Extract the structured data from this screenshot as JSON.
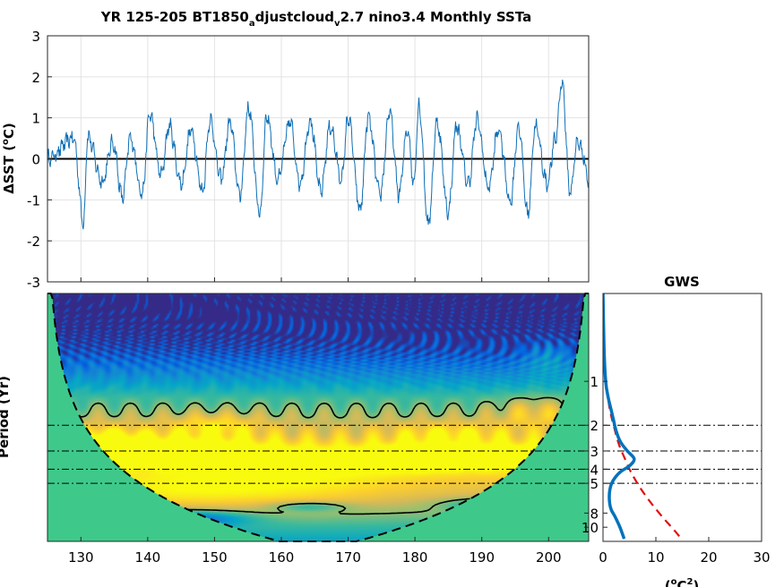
{
  "figure": {
    "title_parts": [
      "YR 125-205 BT1850",
      "a",
      "djustcloud",
      "v",
      "2.7 nino3.4 Monthly SSTa"
    ],
    "colors": {
      "series": "#0f6fb5",
      "zero_line": "#000000",
      "gws_global": "#0072bd",
      "gws_red": "#dd1111",
      "coi_fill": "#3ec98a",
      "grid": "#e3e3e3"
    }
  },
  "chart_data": [
    {
      "type": "line",
      "panel": "time-series",
      "ylabel_parts": [
        "ΔSST (",
        "o",
        "C)"
      ],
      "xlim": [
        125,
        206
      ],
      "ylim": [
        -3,
        3
      ],
      "yticks": [
        "3",
        "2",
        "1",
        "0",
        "-1",
        "-2",
        "-3"
      ],
      "ytick_values": [
        3,
        2,
        1,
        0,
        -1,
        -2,
        -3
      ],
      "grid": true,
      "zero_line": true,
      "x_start": 125.0,
      "x_step": 0.0833333,
      "peaks": [
        [
          128.9,
          0.5
        ],
        [
          130.4,
          -1.55
        ],
        [
          131.0,
          0.55
        ],
        [
          133.2,
          -0.55
        ],
        [
          134.8,
          0.4
        ],
        [
          136.2,
          -0.95
        ],
        [
          137.4,
          0.5
        ],
        [
          139.2,
          -0.85
        ],
        [
          140.3,
          1.1
        ],
        [
          142.0,
          -0.4
        ],
        [
          143.2,
          0.8
        ],
        [
          145.0,
          -0.6
        ],
        [
          146.5,
          0.7
        ],
        [
          148.2,
          -0.8
        ],
        [
          149.3,
          0.95
        ],
        [
          151.0,
          -0.5
        ],
        [
          152.3,
          0.9
        ],
        [
          153.8,
          -0.9
        ],
        [
          155.1,
          1.25
        ],
        [
          156.8,
          -1.35
        ],
        [
          157.8,
          1.05
        ],
        [
          159.5,
          -0.5
        ],
        [
          161.3,
          0.9
        ],
        [
          162.8,
          -0.6
        ],
        [
          164.3,
          0.95
        ],
        [
          165.9,
          -0.8
        ],
        [
          167.3,
          0.8
        ],
        [
          169.0,
          -0.5
        ],
        [
          170.0,
          1.0
        ],
        [
          171.8,
          -1.25
        ],
        [
          173.0,
          1.0
        ],
        [
          174.8,
          -0.9
        ],
        [
          176.2,
          1.15
        ],
        [
          177.6,
          -0.85
        ],
        [
          178.9,
          0.75
        ],
        [
          179.8,
          -0.6
        ],
        [
          180.6,
          1.3
        ],
        [
          182.0,
          -1.6
        ],
        [
          183.3,
          0.9
        ],
        [
          185.0,
          -1.3
        ],
        [
          186.2,
          0.8
        ],
        [
          188.0,
          -0.6
        ],
        [
          189.3,
          0.95
        ],
        [
          191.0,
          -0.7
        ],
        [
          192.5,
          0.7
        ],
        [
          194.3,
          -1.05
        ],
        [
          195.5,
          0.8
        ],
        [
          196.9,
          -1.35
        ],
        [
          198.0,
          0.8
        ],
        [
          199.8,
          -0.6
        ],
        [
          201.0,
          0.45
        ],
        [
          202.0,
          1.9
        ],
        [
          203.2,
          -0.8
        ],
        [
          204.4,
          0.45
        ],
        [
          205.0,
          0.2
        ],
        [
          206.0,
          -0.55
        ]
      ]
    },
    {
      "type": "heatmap",
      "panel": "wavelet-power",
      "ylabel": "Period (Yr)",
      "xlim": [
        125,
        206
      ],
      "xticks": [
        "130",
        "140",
        "150",
        "160",
        "170",
        "180",
        "190",
        "200"
      ],
      "xtick_values": [
        130,
        140,
        150,
        160,
        170,
        180,
        190,
        200
      ],
      "period_range": [
        0.25,
        12.5
      ],
      "yticks": [
        "1",
        "2",
        "3",
        "4",
        "5",
        "8",
        "10"
      ],
      "ytick_values": [
        1,
        2,
        3,
        4,
        5,
        8,
        10
      ],
      "reference_periods": [
        2,
        3,
        4,
        5
      ],
      "colormap": [
        "#352a87",
        "#0363e1",
        "#1485d4",
        "#06a7c6",
        "#38b99e",
        "#92bf73",
        "#d9ba56",
        "#fcce2e",
        "#f9fb0e"
      ],
      "blobs": [
        {
          "t": 158,
          "p": 5.5,
          "sx": 14,
          "sy": 0.35,
          "a": 0.18
        },
        {
          "t": 140,
          "p": 6.0,
          "sx": 11,
          "sy": 0.3,
          "a": 0.12
        },
        {
          "t": 182,
          "p": 3.3,
          "sx": 6,
          "sy": 0.18,
          "a": 0.45
        },
        {
          "t": 145,
          "p": 3.0,
          "sx": 8,
          "sy": 0.22,
          "a": 0.38
        },
        {
          "t": 133,
          "p": 2.6,
          "sx": 5,
          "sy": 0.25,
          "a": 0.3
        },
        {
          "t": 196,
          "p": 3.3,
          "sx": 6,
          "sy": 0.22,
          "a": 0.28
        },
        {
          "t": 165,
          "p": 3.4,
          "sx": 12,
          "sy": 0.25,
          "a": 0.2
        },
        {
          "t": 150,
          "p": 2.0,
          "sx": 5,
          "sy": 0.2,
          "a": 0.22
        },
        {
          "t": 185,
          "p": 2.3,
          "sx": 6,
          "sy": 0.2,
          "a": 0.2
        },
        {
          "t": 198,
          "p": 1.6,
          "sx": 4,
          "sy": 0.25,
          "a": 0.22
        },
        {
          "t": 200,
          "p": 0.7,
          "sx": 2.5,
          "sy": 0.3,
          "a": 0.18
        },
        {
          "t": 146,
          "p": 8.7,
          "sx": 6,
          "sy": 0.12,
          "a": -0.45
        },
        {
          "t": 192,
          "p": 7.0,
          "sx": 5,
          "sy": 0.1,
          "a": -0.35
        },
        {
          "t": 164,
          "p": 7.2,
          "sx": 4,
          "sy": 0.08,
          "a": -0.25
        }
      ]
    },
    {
      "type": "line",
      "panel": "global-wavelet-spectrum",
      "title": "GWS",
      "xlabel_parts": [
        "(",
        "o",
        "C",
        "2",
        ")"
      ],
      "xlim": [
        0,
        30
      ],
      "xticks": [
        "0",
        "10",
        "20",
        "30"
      ],
      "xtick_values": [
        0,
        10,
        20,
        30
      ],
      "yticks": [
        "1",
        "2",
        "3",
        "4",
        "5",
        "8",
        "10"
      ],
      "ytick_values": [
        1,
        2,
        3,
        4,
        5,
        8,
        10
      ],
      "series": [
        {
          "style": "solid-blue",
          "points": [
            [
              0.0,
              0.25
            ],
            [
              0.2,
              0.6
            ],
            [
              0.5,
              1.0
            ],
            [
              1.0,
              1.3
            ],
            [
              1.6,
              1.6
            ],
            [
              2.0,
              1.85
            ],
            [
              2.5,
              2.2
            ],
            [
              3.3,
              2.6
            ],
            [
              4.6,
              3.0
            ],
            [
              5.9,
              3.4
            ],
            [
              5.0,
              3.8
            ],
            [
              3.2,
              4.2
            ],
            [
              1.9,
              4.8
            ],
            [
              1.3,
              5.5
            ],
            [
              1.2,
              6.5
            ],
            [
              1.5,
              7.5
            ],
            [
              2.3,
              8.5
            ],
            [
              3.2,
              10.0
            ],
            [
              4.0,
              12.0
            ]
          ]
        },
        {
          "style": "dashed-red",
          "points": [
            [
              0.0,
              0.25
            ],
            [
              0.3,
              0.7
            ],
            [
              0.6,
              1.0
            ],
            [
              1.2,
              1.5
            ],
            [
              2.0,
              2.0
            ],
            [
              3.0,
              2.7
            ],
            [
              4.0,
              3.3
            ],
            [
              5.0,
              4.0
            ],
            [
              6.2,
              4.8
            ],
            [
              7.8,
              5.9
            ],
            [
              9.6,
              7.2
            ],
            [
              11.6,
              8.8
            ],
            [
              13.5,
              10.5
            ],
            [
              14.8,
              12.0
            ]
          ]
        }
      ]
    }
  ]
}
